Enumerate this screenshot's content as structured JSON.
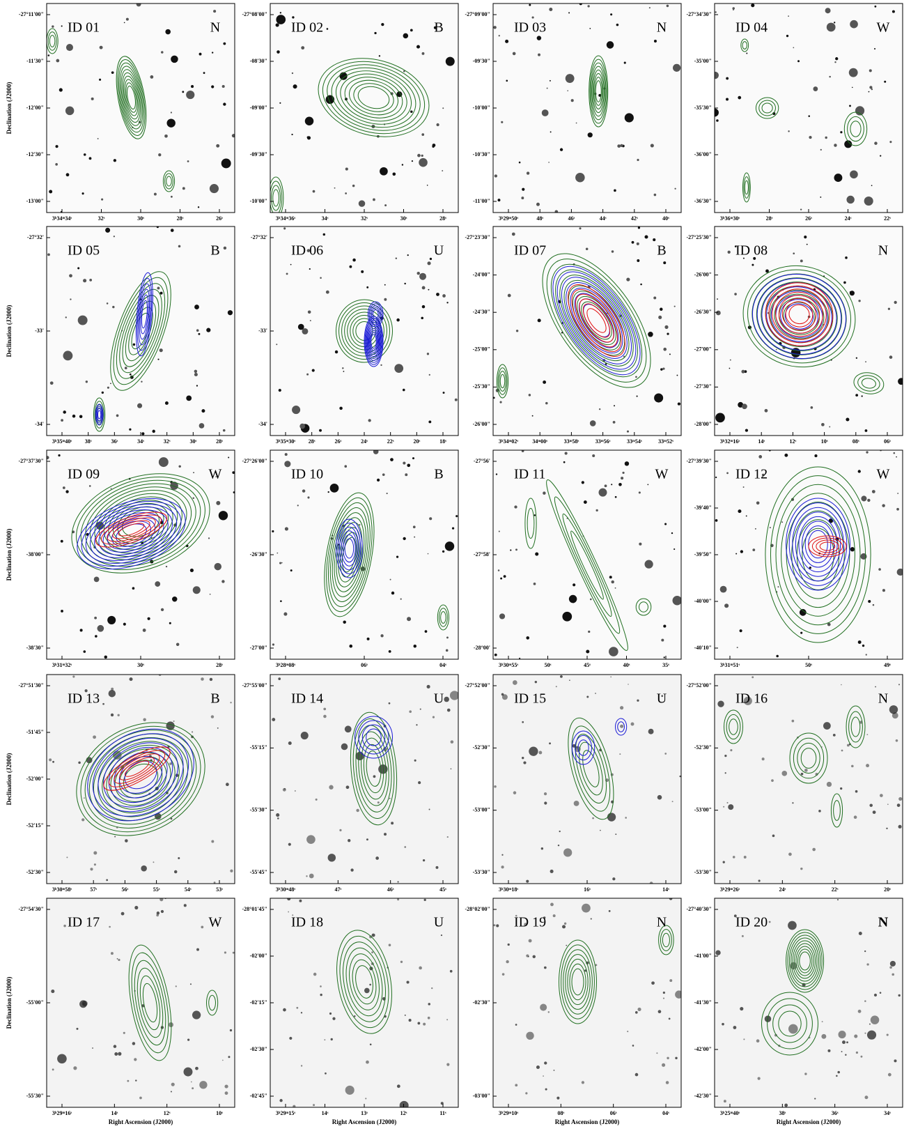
{
  "figure": {
    "y_label": "Declination (J2000)",
    "x_label": "Right Ascension (J2000)",
    "panels": [
      {
        "id": "ID 01",
        "class": "N",
        "dec_ticks": [
          "-27°11'00\"",
          "-11'30\"",
          "-12'00\"",
          "-12'30\"",
          "-13'00\""
        ],
        "ra_ticks": [
          "3ʰ34ᵐ34ˢ",
          "32ˢ",
          "30ˢ",
          "28ˢ",
          "26ˢ"
        ]
      },
      {
        "id": "ID 02",
        "class": "B",
        "dec_ticks": [
          "-27°08'00\"",
          "-08'30\"",
          "-09'00\"",
          "-09'30\"",
          "-10'00\""
        ],
        "ra_ticks": [
          "3ʰ34ᵐ36ˢ",
          "34ˢ",
          "32ˢ",
          "30ˢ",
          "28ˢ"
        ]
      },
      {
        "id": "ID 03",
        "class": "N",
        "dec_ticks": [
          "-27°09'00\"",
          "-09'30\"",
          "-10'00\"",
          "-10'30\"",
          "-11'00\""
        ],
        "ra_ticks": [
          "3ʰ29ᵐ50ˢ",
          "48ˢ",
          "46ˢ",
          "44ˢ",
          "42ˢ",
          "40ˢ"
        ]
      },
      {
        "id": "ID 04",
        "class": "W",
        "dec_ticks": [
          "-27°34'30\"",
          "-35'00\"",
          "-35'30\"",
          "-36'00\"",
          "-36'30\""
        ],
        "ra_ticks": [
          "3ʰ36ᵐ30ˢ",
          "28ˢ",
          "26ˢ",
          "24ˢ",
          "22ˢ"
        ]
      },
      {
        "id": "ID 05",
        "class": "B",
        "dec_ticks": [
          "-27°32'",
          "-33'",
          "-34'"
        ],
        "ra_ticks": [
          "3ʰ35ᵐ40ˢ",
          "38ˢ",
          "36ˢ",
          "34ˢ",
          "32ˢ",
          "30ˢ",
          "28ˢ"
        ]
      },
      {
        "id": "ID 06",
        "class": "U",
        "dec_ticks": [
          "-27°32'",
          "-33'",
          "-34'"
        ],
        "ra_ticks": [
          "3ʰ35ᵐ30ˢ",
          "28ˢ",
          "26ˢ",
          "24ˢ",
          "22ˢ",
          "20ˢ",
          "18ˢ"
        ]
      },
      {
        "id": "ID 07",
        "class": "B",
        "dec_ticks": [
          "-27°23'30\"",
          "-24'00\"",
          "-24'30\"",
          "-25'00\"",
          "-25'30\"",
          "-26'00\""
        ],
        "ra_ticks": [
          "3ʰ34ᵐ02ˢ",
          "34ᵐ00ˢ",
          "33ᵐ58ˢ",
          "33ᵐ56ˢ",
          "33ᵐ54ˢ",
          "33ᵐ52ˢ"
        ]
      },
      {
        "id": "ID 08",
        "class": "N",
        "dec_ticks": [
          "-27°25'30\"",
          "-26'00\"",
          "-26'30\"",
          "-27'00\"",
          "-27'30\"",
          "-28'00\""
        ],
        "ra_ticks": [
          "3ʰ32ᵐ16ˢ",
          "14ˢ",
          "12ˢ",
          "10ˢ",
          "08ˢ",
          "06ˢ"
        ]
      },
      {
        "id": "ID 09",
        "class": "W",
        "dec_ticks": [
          "-27°37'30\"",
          "-38'00\"",
          "-38'30\""
        ],
        "ra_ticks": [
          "3ʰ31ᵐ32ˢ",
          "30ˢ",
          "28ˢ"
        ]
      },
      {
        "id": "ID 10",
        "class": "B",
        "dec_ticks": [
          "-27°26'00\"",
          "-26'30\"",
          "-27'00\""
        ],
        "ra_ticks": [
          "3ʰ28ᵐ08ˢ",
          "06ˢ",
          "04ˢ"
        ]
      },
      {
        "id": "ID 11",
        "class": "W",
        "dec_ticks": [
          "-27°56'",
          "-27°58'",
          "-28°00'"
        ],
        "ra_ticks": [
          "3ʰ30ᵐ55ˢ",
          "50ˢ",
          "45ˢ",
          "40ˢ",
          "35ˢ"
        ]
      },
      {
        "id": "ID 12",
        "class": "W",
        "dec_ticks": [
          "-27°39'30\"",
          "-39'40\"",
          "-39'50\"",
          "-40'00\"",
          "-40'10\""
        ],
        "ra_ticks": [
          "3ʰ31ᵐ51ˢ",
          "50ˢ",
          "49ˢ"
        ]
      },
      {
        "id": "ID 13",
        "class": "B",
        "dec_ticks": [
          "-27°51'30\"",
          "-51'45\"",
          "-52'00\"",
          "-52'15\"",
          "-52'30\""
        ],
        "ra_ticks": [
          "3ʰ30ᵐ58ˢ",
          "57ˢ",
          "56ˢ",
          "55ˢ",
          "54ˢ",
          "53ˢ"
        ]
      },
      {
        "id": "ID 14",
        "class": "U",
        "dec_ticks": [
          "-27°55'00\"",
          "-55'15\"",
          "-55'30\"",
          "-55'45\""
        ],
        "ra_ticks": [
          "3ʰ30ᵐ48ˢ",
          "47ˢ",
          "46ˢ",
          "45ˢ"
        ]
      },
      {
        "id": "ID 15",
        "class": "U",
        "dec_ticks": [
          "-27°52'00\"",
          "-52'30\"",
          "-53'00\"",
          "-53'30\""
        ],
        "ra_ticks": [
          "3ʰ30ᵐ18ˢ",
          "16ˢ",
          "14ˢ"
        ]
      },
      {
        "id": "ID 16",
        "class": "N",
        "dec_ticks": [
          "-27°52'00\"",
          "-52'30\"",
          "-53'00\"",
          "-53'30\""
        ],
        "ra_ticks": [
          "3ʰ29ᵐ26ˢ",
          "24ˢ",
          "22ˢ",
          "20ˢ"
        ]
      },
      {
        "id": "ID 17",
        "class": "W",
        "dec_ticks": [
          "-27°54'30\"",
          "-55'00\"",
          "-55'30\""
        ],
        "ra_ticks": [
          "3ʰ29ᵐ16ˢ",
          "14ˢ",
          "12ˢ",
          "10ˢ"
        ]
      },
      {
        "id": "ID 18",
        "class": "U",
        "dec_ticks": [
          "-28°01'45\"",
          "-02'00\"",
          "-02'15\"",
          "-02'30\"",
          "-02'45\""
        ],
        "ra_ticks": [
          "3ʰ29ᵐ15ˢ",
          "14ˢ",
          "13ˢ",
          "12ˢ",
          "11ˢ"
        ]
      },
      {
        "id": "ID 19",
        "class": "N",
        "dec_ticks": [
          "-28°02'00\"",
          "-02'30\"",
          "-03'00\""
        ],
        "ra_ticks": [
          "3ʰ29ᵐ10ˢ",
          "08ˢ",
          "06ˢ",
          "04ˢ"
        ]
      },
      {
        "id": "ID 20",
        "class": "N",
        "dec_ticks": [
          "-27°40'30\"",
          "-41'00\"",
          "-41'30\"",
          "-42'00\"",
          "-42'30\""
        ],
        "ra_ticks": [
          "3ʰ25ᵐ40ˢ",
          "38ˢ",
          "36ˢ",
          "34ˢ"
        ]
      }
    ]
  }
}
